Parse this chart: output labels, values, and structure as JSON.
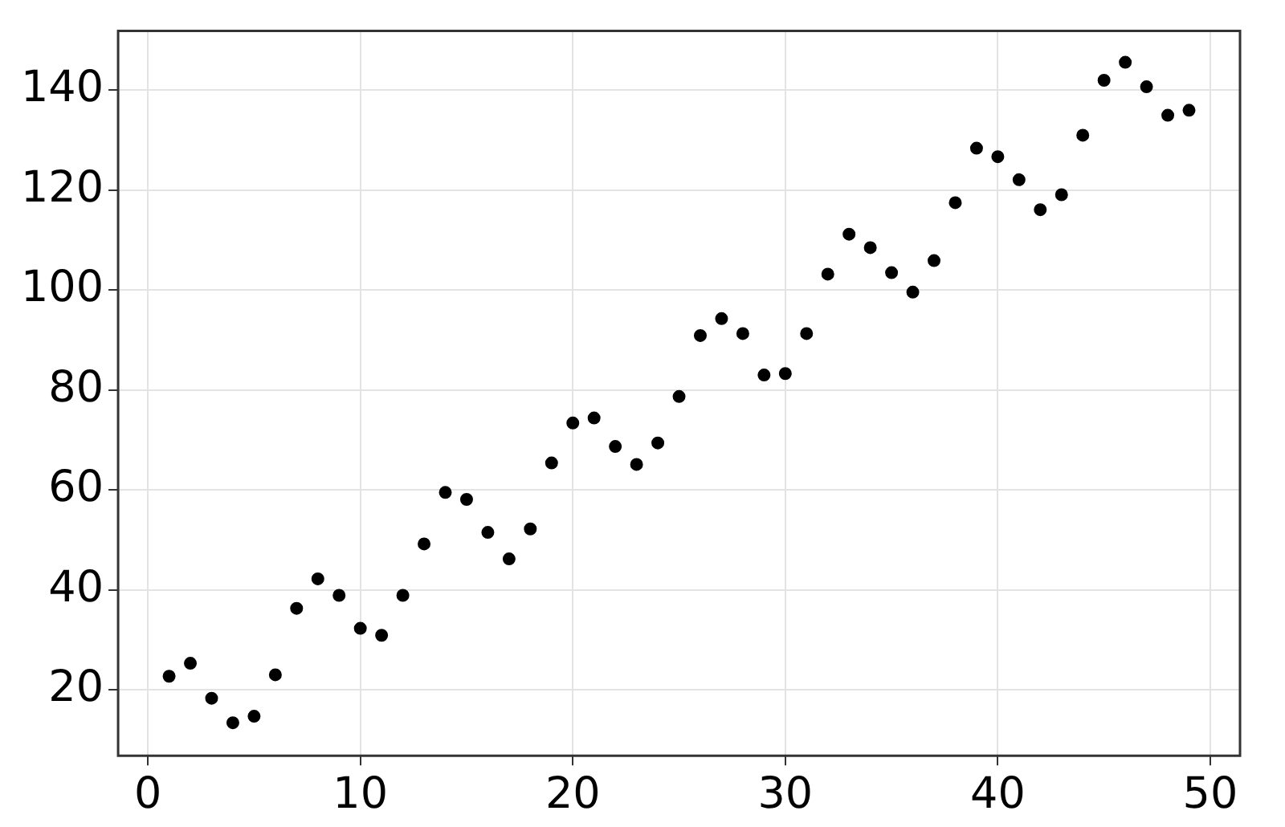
{
  "chart_data": {
    "type": "scatter",
    "x": [
      1,
      2,
      3,
      4,
      5,
      6,
      7,
      8,
      9,
      10,
      11,
      12,
      13,
      14,
      15,
      16,
      17,
      18,
      19,
      20,
      21,
      22,
      23,
      24,
      25,
      26,
      27,
      28,
      29,
      30,
      31,
      32,
      33,
      34,
      35,
      36,
      37,
      38,
      39,
      40,
      41,
      42,
      43,
      44,
      45,
      46,
      47,
      48,
      49
    ],
    "series": [
      {
        "color": "#000000",
        "values": [
          22.7,
          25.3,
          18.3,
          13.4,
          14.7,
          23,
          36.3,
          42.2,
          38.9,
          32.3,
          30.9,
          38.9,
          49.2,
          59.5,
          58.1,
          51.5,
          46.2,
          52.2,
          65.4,
          73.4,
          74.4,
          68.7,
          65.1,
          69.4,
          78.7,
          90.9,
          94.3,
          91.3,
          83,
          83.3,
          91.3,
          103.2,
          111.2,
          108.5,
          103.5,
          99.6,
          105.9,
          117.5,
          128.4,
          126.7,
          122.1,
          116.1,
          119.1,
          131,
          142,
          145.6,
          140.7,
          135,
          136
        ]
      }
    ],
    "xlim": [
      -1.4,
      51.4
    ],
    "ylim": [
      6.8,
      151.9
    ],
    "xticks": [
      0,
      10,
      20,
      30,
      40,
      50
    ],
    "yticks": [
      20,
      40,
      60,
      80,
      100,
      120,
      140
    ],
    "grid": true,
    "marker": "circle",
    "legend": false
  }
}
